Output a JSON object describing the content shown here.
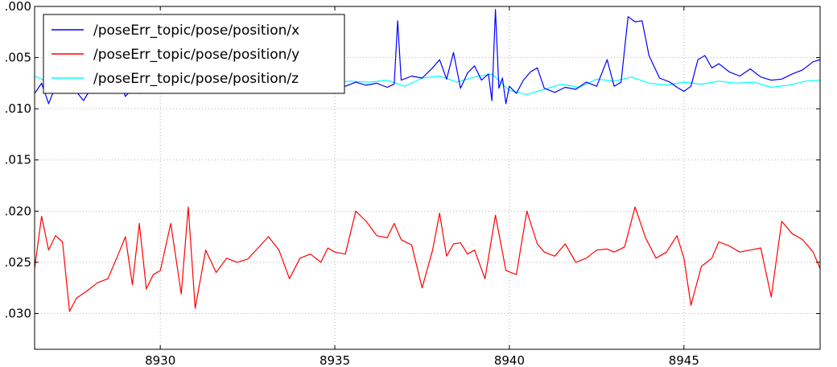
{
  "chart_data": {
    "type": "line",
    "title": "",
    "xlabel": "",
    "ylabel": "",
    "xlim": [
      8926.4,
      8948.9
    ],
    "ylim": [
      -0.0335,
      0.0
    ],
    "xticks": [
      8930,
      8935,
      8940,
      8945
    ],
    "xtick_labels": [
      "8930",
      "8935",
      "8940",
      "8945"
    ],
    "yticks": [
      0.0,
      -0.005,
      -0.01,
      -0.015,
      -0.02,
      -0.025,
      -0.03
    ],
    "ytick_labels": [
      ".000",
      ".005",
      ".010",
      ".015",
      ".020",
      ".025",
      ".030"
    ],
    "grid": true,
    "legend_position": "top-left",
    "series": [
      {
        "name": "/poseErr_topic/pose/position/x",
        "color": "#0000ff",
        "x": [
          8926.4,
          8926.6,
          8926.8,
          8927.0,
          8927.2,
          8927.5,
          8927.8,
          8928.0,
          8928.3,
          8928.6,
          8928.9,
          8929.0,
          8929.2,
          8929.4,
          8929.6,
          8929.8,
          8930.0,
          8930.3,
          8930.6,
          8930.8,
          8931.0,
          8931.3,
          8931.6,
          8931.9,
          8932.2,
          8932.5,
          8932.8,
          8933.1,
          8933.4,
          8933.7,
          8934.0,
          8934.3,
          8934.6,
          8934.8,
          8935.0,
          8935.3,
          8935.6,
          8935.9,
          8936.2,
          8936.5,
          8936.7,
          8936.8,
          8936.9,
          8937.2,
          8937.5,
          8937.8,
          8938.0,
          8938.2,
          8938.4,
          8938.6,
          8938.8,
          8939.0,
          8939.2,
          8939.4,
          8939.5,
          8939.6,
          8939.7,
          8939.8,
          8939.9,
          8940.0,
          8940.2,
          8940.4,
          8940.6,
          8940.8,
          8941.0,
          8941.3,
          8941.6,
          8941.9,
          8942.2,
          8942.5,
          8942.8,
          8943.0,
          8943.2,
          8943.4,
          8943.6,
          8943.8,
          8944.0,
          8944.3,
          8944.6,
          8944.8,
          8945.0,
          8945.2,
          8945.4,
          8945.6,
          8945.8,
          8946.0,
          8946.3,
          8946.6,
          8946.9,
          8947.2,
          8947.5,
          8947.8,
          8948.1,
          8948.4,
          8948.7,
          8948.9
        ],
        "values": [
          -0.0085,
          -0.0075,
          -0.0095,
          -0.0078,
          -0.0082,
          -0.0079,
          -0.0092,
          -0.0081,
          -0.0078,
          -0.0083,
          -0.0079,
          -0.0088,
          -0.008,
          -0.0085,
          -0.0078,
          -0.0082,
          -0.0079,
          -0.0076,
          -0.0081,
          -0.0078,
          -0.0074,
          -0.0079,
          -0.0077,
          -0.0081,
          -0.0075,
          -0.0078,
          -0.008,
          -0.0077,
          -0.0079,
          -0.0082,
          -0.0078,
          -0.008,
          -0.0077,
          -0.0079,
          -0.0076,
          -0.0078,
          -0.0074,
          -0.0077,
          -0.0075,
          -0.0079,
          -0.0076,
          -0.0014,
          -0.0072,
          -0.0068,
          -0.007,
          -0.006,
          -0.0052,
          -0.0071,
          -0.0045,
          -0.008,
          -0.0065,
          -0.0058,
          -0.0072,
          -0.0066,
          -0.0092,
          -0.0003,
          -0.008,
          -0.007,
          -0.0095,
          -0.0078,
          -0.0085,
          -0.0072,
          -0.0064,
          -0.006,
          -0.008,
          -0.0084,
          -0.0079,
          -0.0081,
          -0.0074,
          -0.0078,
          -0.0052,
          -0.0078,
          -0.0074,
          -0.001,
          -0.0015,
          -0.0014,
          -0.0048,
          -0.007,
          -0.0074,
          -0.0079,
          -0.0083,
          -0.0078,
          -0.0052,
          -0.0048,
          -0.006,
          -0.0056,
          -0.0064,
          -0.0068,
          -0.0061,
          -0.0069,
          -0.0072,
          -0.0071,
          -0.0066,
          -0.0062,
          -0.0054,
          -0.0052
        ]
      },
      {
        "name": "/poseErr_topic/pose/position/y",
        "color": "#ff0000",
        "x": [
          8926.4,
          8926.6,
          8926.8,
          8927.0,
          8927.2,
          8927.4,
          8927.6,
          8927.9,
          8928.2,
          8928.5,
          8928.8,
          8929.0,
          8929.2,
          8929.4,
          8929.6,
          8929.8,
          8930.0,
          8930.3,
          8930.6,
          8930.8,
          8931.0,
          8931.3,
          8931.6,
          8931.9,
          8932.2,
          8932.5,
          8932.8,
          8933.1,
          8933.4,
          8933.7,
          8934.0,
          8934.3,
          8934.6,
          8934.8,
          8935.0,
          8935.3,
          8935.6,
          8935.9,
          8936.2,
          8936.5,
          8936.7,
          8936.9,
          8937.2,
          8937.5,
          8937.8,
          8938.0,
          8938.2,
          8938.4,
          8938.6,
          8938.8,
          8939.0,
          8939.3,
          8939.6,
          8939.9,
          8940.2,
          8940.5,
          8940.8,
          8941.0,
          8941.3,
          8941.6,
          8941.9,
          8942.2,
          8942.5,
          8942.8,
          8943.0,
          8943.3,
          8943.6,
          8943.9,
          8944.2,
          8944.5,
          8944.8,
          8945.0,
          8945.2,
          8945.5,
          8945.8,
          8946.0,
          8946.3,
          8946.6,
          8946.9,
          8947.2,
          8947.5,
          8947.8,
          8948.1,
          8948.4,
          8948.7,
          8948.9
        ],
        "values": [
          -0.0256,
          -0.0205,
          -0.0238,
          -0.0224,
          -0.023,
          -0.0298,
          -0.0285,
          -0.0278,
          -0.027,
          -0.0266,
          -0.0242,
          -0.0225,
          -0.0272,
          -0.0212,
          -0.0276,
          -0.0262,
          -0.0258,
          -0.0212,
          -0.0281,
          -0.0196,
          -0.0295,
          -0.0238,
          -0.026,
          -0.0246,
          -0.025,
          -0.0247,
          -0.0236,
          -0.0225,
          -0.0238,
          -0.0266,
          -0.0246,
          -0.0242,
          -0.025,
          -0.0236,
          -0.024,
          -0.0242,
          -0.02,
          -0.021,
          -0.0224,
          -0.0226,
          -0.0212,
          -0.0228,
          -0.0233,
          -0.0275,
          -0.0238,
          -0.0202,
          -0.0244,
          -0.0232,
          -0.0231,
          -0.0242,
          -0.0238,
          -0.0266,
          -0.0204,
          -0.0258,
          -0.0262,
          -0.02,
          -0.0232,
          -0.024,
          -0.0244,
          -0.0232,
          -0.025,
          -0.0246,
          -0.0238,
          -0.0237,
          -0.024,
          -0.0235,
          -0.0196,
          -0.0226,
          -0.0246,
          -0.024,
          -0.0224,
          -0.0246,
          -0.0292,
          -0.0254,
          -0.0246,
          -0.023,
          -0.0234,
          -0.024,
          -0.0238,
          -0.0236,
          -0.0284,
          -0.021,
          -0.0222,
          -0.0228,
          -0.024,
          -0.0256
        ]
      },
      {
        "name": "/poseErr_topic/pose/position/z",
        "color": "#00ffff",
        "x": [
          8926.4,
          8927.0,
          8927.6,
          8928.2,
          8928.8,
          8929.4,
          8930.0,
          8930.6,
          8931.2,
          8931.8,
          8932.4,
          8933.0,
          8933.6,
          8934.2,
          8934.8,
          8935.4,
          8936.0,
          8936.5,
          8937.0,
          8937.5,
          8938.0,
          8938.5,
          8939.0,
          8939.5,
          8940.0,
          8940.5,
          8941.0,
          8941.5,
          8942.0,
          8942.5,
          8943.0,
          8943.5,
          8944.0,
          8944.5,
          8945.0,
          8945.5,
          8946.0,
          8946.5,
          8947.0,
          8947.5,
          8948.0,
          8948.5,
          8948.9
        ],
        "values": [
          -0.0068,
          -0.0077,
          -0.0082,
          -0.0079,
          -0.008,
          -0.0078,
          -0.0079,
          -0.0077,
          -0.0081,
          -0.0078,
          -0.008,
          -0.0077,
          -0.0079,
          -0.0078,
          -0.0076,
          -0.0073,
          -0.0074,
          -0.0072,
          -0.0078,
          -0.007,
          -0.0068,
          -0.0074,
          -0.0069,
          -0.0066,
          -0.0082,
          -0.0086,
          -0.0081,
          -0.0076,
          -0.0079,
          -0.0071,
          -0.0073,
          -0.0069,
          -0.0075,
          -0.0077,
          -0.0074,
          -0.0076,
          -0.0073,
          -0.0075,
          -0.0074,
          -0.0079,
          -0.0077,
          -0.0073,
          -0.0072
        ]
      }
    ]
  }
}
